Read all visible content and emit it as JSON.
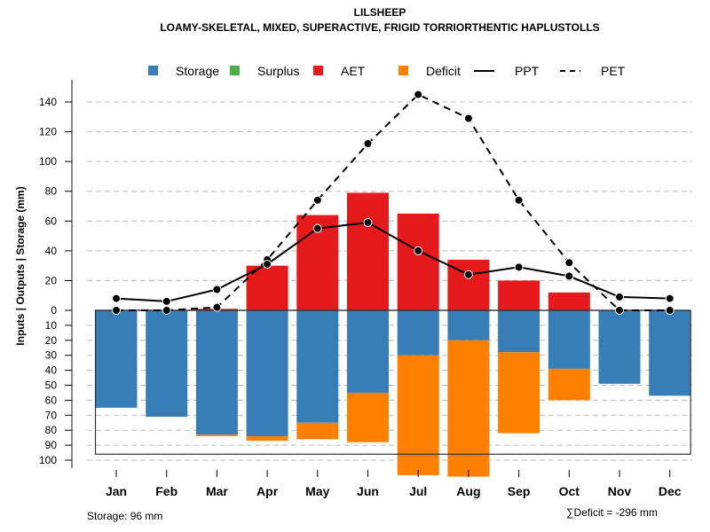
{
  "chart_data": {
    "type": "bar",
    "title": "LILSHEEP",
    "subtitle": "LOAMY-SKELETAL, MIXED, SUPERACTIVE, FRIGID TORRIORTHENTIC HAPLUSTOLLS",
    "ylabel": "Inputs | Outputs | Storage    (mm)",
    "xlabel": "",
    "categories": [
      "Jan",
      "Feb",
      "Mar",
      "Apr",
      "May",
      "Jun",
      "Jul",
      "Aug",
      "Sep",
      "Oct",
      "Nov",
      "Dec"
    ],
    "upper_axis": {
      "ylim": [
        0,
        140
      ],
      "ticks": [
        0,
        20,
        40,
        60,
        80,
        100,
        120,
        140
      ]
    },
    "lower_axis": {
      "ylim": [
        0,
        100
      ],
      "ticks": [
        0,
        10,
        20,
        30,
        40,
        50,
        60,
        70,
        80,
        90,
        100
      ],
      "direction": "down"
    },
    "grid": true,
    "legend_position": "top",
    "legend": [
      {
        "name": "Storage",
        "kind": "box",
        "color": "#377EB8"
      },
      {
        "name": "Surplus",
        "kind": "box",
        "color": "#4DAF4A"
      },
      {
        "name": "AET",
        "kind": "box",
        "color": "#E41A1C"
      },
      {
        "name": "Deficit",
        "kind": "box",
        "color": "#FF7F00"
      },
      {
        "name": "PPT",
        "kind": "solid-line",
        "color": "#000000"
      },
      {
        "name": "PET",
        "kind": "dashed-line",
        "color": "#000000"
      }
    ],
    "series": [
      {
        "name": "AET",
        "type": "bar",
        "direction": "up",
        "color": "#E41A1C",
        "values": [
          0,
          0,
          1,
          30,
          64,
          79,
          65,
          34,
          20,
          12,
          0,
          0
        ]
      },
      {
        "name": "Surplus",
        "type": "bar",
        "direction": "up",
        "color": "#4DAF4A",
        "values": [
          0,
          0,
          0,
          0,
          0,
          0,
          0,
          0,
          0,
          0,
          0,
          0
        ]
      },
      {
        "name": "Storage",
        "type": "bar",
        "direction": "down",
        "color": "#377EB8",
        "values": [
          65,
          71,
          83,
          84,
          75,
          55,
          30,
          20,
          28,
          39,
          49,
          57
        ]
      },
      {
        "name": "Deficit",
        "type": "bar",
        "direction": "down",
        "stacked_below": "Storage",
        "color": "#FF7F00",
        "values": [
          0,
          0,
          1,
          3,
          11,
          33,
          80,
          91,
          54,
          21,
          0,
          0
        ]
      },
      {
        "name": "PPT",
        "type": "line",
        "style": "solid",
        "color": "#000000",
        "values": [
          8,
          6,
          14,
          31,
          55,
          59,
          40,
          24,
          29,
          23,
          9,
          8
        ]
      },
      {
        "name": "PET",
        "type": "line",
        "style": "dashed",
        "color": "#000000",
        "values": [
          0,
          0,
          2,
          34,
          74,
          112,
          145,
          129,
          74,
          32,
          0,
          0
        ]
      }
    ],
    "storage_capacity": 96,
    "annotations": {
      "storage": "Storage: 96 mm",
      "deficit_sum": "∑Deficit = -296 mm"
    }
  }
}
